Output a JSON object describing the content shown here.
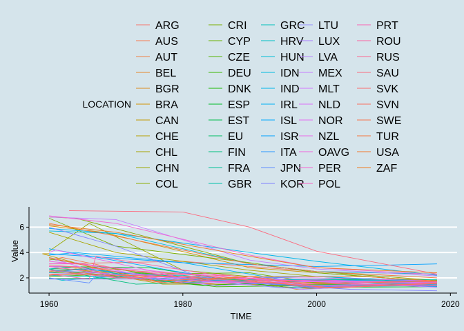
{
  "chart_data": {
    "type": "line",
    "xlabel": "TIME",
    "ylabel": "Value",
    "xlim": [
      1957,
      2021
    ],
    "ylim": [
      0.8,
      7.6
    ],
    "xticks": [
      1960,
      1980,
      2000,
      2020
    ],
    "yticks": [
      2,
      4,
      6
    ],
    "grid": true,
    "legend": {
      "title": "LOCATION",
      "placement": "top",
      "columns": 5,
      "entries": [
        {
          "name": "ARG",
          "color": "#F8766D"
        },
        {
          "name": "AUS",
          "color": "#F67B50"
        },
        {
          "name": "AUT",
          "color": "#F07F43"
        },
        {
          "name": "BEL",
          "color": "#E6862A"
        },
        {
          "name": "BGR",
          "color": "#DD8D1C"
        },
        {
          "name": "BRA",
          "color": "#D39200"
        },
        {
          "name": "CAN",
          "color": "#C49A00"
        },
        {
          "name": "CHE",
          "color": "#B79F00"
        },
        {
          "name": "CHL",
          "color": "#A8A400"
        },
        {
          "name": "CHN",
          "color": "#9AA800"
        },
        {
          "name": "COL",
          "color": "#8AAB00"
        },
        {
          "name": "CRI",
          "color": "#7BAE00"
        },
        {
          "name": "CYP",
          "color": "#6BB100"
        },
        {
          "name": "CZE",
          "color": "#55B400"
        },
        {
          "name": "DEU",
          "color": "#3CB700"
        },
        {
          "name": "DNK",
          "color": "#1BB900"
        },
        {
          "name": "ESP",
          "color": "#00BB27"
        },
        {
          "name": "EST",
          "color": "#00BC48"
        },
        {
          "name": "EU",
          "color": "#00BE63"
        },
        {
          "name": "FIN",
          "color": "#00BF7D"
        },
        {
          "name": "FRA",
          "color": "#00C094"
        },
        {
          "name": "GBR",
          "color": "#00C0A9"
        },
        {
          "name": "GRC",
          "color": "#00C0BB"
        },
        {
          "name": "HRV",
          "color": "#00BFC4"
        },
        {
          "name": "HUN",
          "color": "#00BDD5"
        },
        {
          "name": "IDN",
          "color": "#00BAE0"
        },
        {
          "name": "IND",
          "color": "#00B6EB"
        },
        {
          "name": "IRL",
          "color": "#00B0F6"
        },
        {
          "name": "ISL",
          "color": "#00A9FF"
        },
        {
          "name": "ISR",
          "color": "#00A0FF"
        },
        {
          "name": "ITA",
          "color": "#2C97FF"
        },
        {
          "name": "JPN",
          "color": "#5F8CFF"
        },
        {
          "name": "KOR",
          "color": "#7F80FF"
        },
        {
          "name": "LTU",
          "color": "#9590FF"
        },
        {
          "name": "LUX",
          "color": "#A97EFF"
        },
        {
          "name": "LVA",
          "color": "#B983FF"
        },
        {
          "name": "MEX",
          "color": "#C77CFF"
        },
        {
          "name": "MLT",
          "color": "#D376FF"
        },
        {
          "name": "NLD",
          "color": "#DC71FA"
        },
        {
          "name": "NOR",
          "color": "#E56CF3"
        },
        {
          "name": "NZL",
          "color": "#EB6AE9"
        },
        {
          "name": "OAVG",
          "color": "#F166DE"
        },
        {
          "name": "PER",
          "color": "#F564D1"
        },
        {
          "name": "POL",
          "color": "#F863C3"
        },
        {
          "name": "PRT",
          "color": "#FA63B3"
        },
        {
          "name": "ROU",
          "color": "#FC64A2"
        },
        {
          "name": "RUS",
          "color": "#FD6690"
        },
        {
          "name": "SAU",
          "color": "#FC6A7E"
        },
        {
          "name": "SVK",
          "color": "#FB6D6E"
        },
        {
          "name": "SVN",
          "color": "#F9715C"
        },
        {
          "name": "SWE",
          "color": "#F7744C"
        },
        {
          "name": "TUR",
          "color": "#F5763C"
        },
        {
          "name": "USA",
          "color": "#F3782C"
        },
        {
          "name": "ZAF",
          "color": "#F07A1E"
        }
      ]
    },
    "series": [
      {
        "name": "ARG",
        "x": [
          1960,
          1980,
          2000,
          2018
        ],
        "y": [
          3.1,
          3.3,
          2.5,
          2.3
        ]
      },
      {
        "name": "AUS",
        "x": [
          1960,
          1962,
          1976,
          2000,
          2018
        ],
        "y": [
          3.4,
          3.6,
          2.1,
          1.8,
          1.75
        ]
      },
      {
        "name": "AUT",
        "x": [
          1960,
          1964,
          1977,
          2000,
          2018
        ],
        "y": [
          2.7,
          2.8,
          1.6,
          1.35,
          1.5
        ]
      },
      {
        "name": "BEL",
        "x": [
          1960,
          1964,
          1985,
          2000,
          2018
        ],
        "y": [
          2.5,
          2.7,
          1.5,
          1.65,
          1.6
        ]
      },
      {
        "name": "BGR",
        "x": [
          1960,
          1975,
          1990,
          1997,
          2018
        ],
        "y": [
          2.3,
          2.2,
          1.8,
          1.1,
          1.55
        ]
      },
      {
        "name": "BRA",
        "x": [
          1960,
          1968,
          1990,
          2000,
          2018
        ],
        "y": [
          6.1,
          5.6,
          2.8,
          2.4,
          1.7
        ]
      },
      {
        "name": "CAN",
        "x": [
          1960,
          1959,
          1970,
          1990,
          2018
        ],
        "y": [
          3.9,
          3.9,
          2.3,
          1.8,
          1.5
        ]
      },
      {
        "name": "CHE",
        "x": [
          1960,
          1964,
          1977,
          2000,
          2018
        ],
        "y": [
          2.4,
          2.7,
          1.5,
          1.5,
          1.52
        ]
      },
      {
        "name": "CHL",
        "x": [
          1960,
          1970,
          1990,
          2000,
          2018
        ],
        "y": [
          5.6,
          4.0,
          2.6,
          2.1,
          1.65
        ]
      },
      {
        "name": "CHN",
        "x": [
          1960,
          1966,
          1980,
          2000,
          2018
        ],
        "y": [
          4.1,
          6.3,
          2.6,
          1.6,
          1.7
        ]
      },
      {
        "name": "COL",
        "x": [
          1960,
          1964,
          1990,
          2000,
          2018
        ],
        "y": [
          6.8,
          6.7,
          3.1,
          2.5,
          1.8
        ]
      },
      {
        "name": "CRI",
        "x": [
          1960,
          1970,
          1990,
          2000,
          2018
        ],
        "y": [
          6.7,
          4.5,
          3.2,
          2.4,
          1.7
        ]
      },
      {
        "name": "CYP",
        "x": [
          1960,
          1975,
          1990,
          2000,
          2018
        ],
        "y": [
          3.5,
          2.3,
          2.4,
          1.6,
          1.35
        ]
      },
      {
        "name": "CZE",
        "x": [
          1960,
          1974,
          1995,
          2000,
          2018
        ],
        "y": [
          2.1,
          2.4,
          1.3,
          1.15,
          1.7
        ]
      },
      {
        "name": "DEU",
        "x": [
          1960,
          1966,
          1985,
          2000,
          2018
        ],
        "y": [
          2.4,
          2.5,
          1.3,
          1.4,
          1.55
        ]
      },
      {
        "name": "DNK",
        "x": [
          1960,
          1967,
          1983,
          2000,
          2018
        ],
        "y": [
          2.6,
          2.3,
          1.4,
          1.8,
          1.75
        ]
      },
      {
        "name": "ESP",
        "x": [
          1960,
          1975,
          1995,
          2000,
          2018
        ],
        "y": [
          2.9,
          2.8,
          1.2,
          1.25,
          1.3
        ]
      },
      {
        "name": "EST",
        "x": [
          1960,
          1980,
          1998,
          2000,
          2018
        ],
        "y": [
          1.95,
          2.0,
          1.3,
          1.4,
          1.65
        ]
      },
      {
        "name": "EU",
        "x": [
          1960,
          1965,
          1995,
          2000,
          2018
        ],
        "y": [
          2.6,
          2.7,
          1.45,
          1.45,
          1.55
        ]
      },
      {
        "name": "FIN",
        "x": [
          1960,
          1973,
          1990,
          2010,
          2018
        ],
        "y": [
          2.7,
          1.5,
          1.8,
          1.85,
          1.4
        ]
      },
      {
        "name": "FRA",
        "x": [
          1960,
          1964,
          1976,
          2000,
          2018
        ],
        "y": [
          2.7,
          2.9,
          1.8,
          1.9,
          1.85
        ]
      },
      {
        "name": "GBR",
        "x": [
          1960,
          1964,
          1977,
          2008,
          2018
        ],
        "y": [
          2.7,
          2.9,
          1.7,
          1.95,
          1.7
        ]
      },
      {
        "name": "GRC",
        "x": [
          1960,
          1980,
          1999,
          2008,
          2018
        ],
        "y": [
          2.3,
          2.2,
          1.25,
          1.5,
          1.35
        ]
      },
      {
        "name": "HRV",
        "x": [
          1960,
          1980,
          2000,
          2018
        ],
        "y": [
          2.2,
          1.9,
          1.4,
          1.45
        ]
      },
      {
        "name": "HUN",
        "x": [
          1960,
          1962,
          1975,
          2000,
          2018
        ],
        "y": [
          2.0,
          1.8,
          2.3,
          1.3,
          1.5
        ]
      },
      {
        "name": "IDN",
        "x": [
          1960,
          1970,
          1990,
          2000,
          2018
        ],
        "y": [
          5.7,
          5.5,
          3.1,
          2.5,
          2.3
        ]
      },
      {
        "name": "IND",
        "x": [
          1960,
          1970,
          1990,
          2000,
          2018
        ],
        "y": [
          5.9,
          5.5,
          4.0,
          3.3,
          2.2
        ]
      },
      {
        "name": "IRL",
        "x": [
          1960,
          1964,
          1980,
          1995,
          2018
        ],
        "y": [
          3.8,
          4.0,
          3.2,
          1.85,
          1.75
        ]
      },
      {
        "name": "ISL",
        "x": [
          1960,
          1962,
          1985,
          2000,
          2018
        ],
        "y": [
          4.3,
          4.1,
          1.95,
          2.1,
          1.7
        ]
      },
      {
        "name": "ISR",
        "x": [
          1960,
          1980,
          2000,
          2010,
          2018
        ],
        "y": [
          3.9,
          3.2,
          2.9,
          3.0,
          3.1
        ]
      },
      {
        "name": "ITA",
        "x": [
          1960,
          1965,
          1995,
          2010,
          2018
        ],
        "y": [
          2.4,
          2.7,
          1.2,
          1.45,
          1.3
        ]
      },
      {
        "name": "JPN",
        "x": [
          1960,
          1966,
          1967,
          1975,
          2005,
          2018
        ],
        "y": [
          2.0,
          1.6,
          2.2,
          1.9,
          1.3,
          1.42
        ]
      },
      {
        "name": "KOR",
        "x": [
          1960,
          1970,
          1984,
          2005,
          2018
        ],
        "y": [
          6.0,
          4.5,
          1.8,
          1.1,
          0.98
        ]
      },
      {
        "name": "LTU",
        "x": [
          1960,
          1980,
          2000,
          2018
        ],
        "y": [
          2.6,
          2.0,
          1.4,
          1.6
        ]
      },
      {
        "name": "LUX",
        "x": [
          1960,
          1967,
          1985,
          2000,
          2018
        ],
        "y": [
          2.3,
          2.4,
          1.4,
          1.75,
          1.4
        ]
      },
      {
        "name": "LVA",
        "x": [
          1960,
          1980,
          1998,
          2018
        ],
        "y": [
          1.9,
          1.9,
          1.1,
          1.6
        ]
      },
      {
        "name": "MEX",
        "x": [
          1960,
          1970,
          1990,
          2000,
          2018
        ],
        "y": [
          6.8,
          6.6,
          3.4,
          2.7,
          2.15
        ]
      },
      {
        "name": "MLT",
        "x": [
          1960,
          1970,
          1990,
          2000,
          2018
        ],
        "y": [
          3.6,
          2.0,
          2.0,
          1.7,
          1.25
        ]
      },
      {
        "name": "NLD",
        "x": [
          1960,
          1964,
          1980,
          2000,
          2018
        ],
        "y": [
          3.1,
          3.2,
          1.6,
          1.7,
          1.6
        ]
      },
      {
        "name": "NOR",
        "x": [
          1960,
          1964,
          1983,
          2000,
          2018
        ],
        "y": [
          2.9,
          2.9,
          1.7,
          1.85,
          1.55
        ]
      },
      {
        "name": "NZL",
        "x": [
          1960,
          1961,
          1980,
          2000,
          2018
        ],
        "y": [
          4.0,
          4.2,
          2.0,
          2.0,
          1.75
        ]
      },
      {
        "name": "OAVG",
        "x": [
          1960,
          1970,
          1990,
          2000,
          2018
        ],
        "y": [
          3.3,
          2.8,
          1.9,
          1.75,
          1.65
        ]
      },
      {
        "name": "PER",
        "x": [
          1960,
          1970,
          1990,
          2000,
          2018
        ],
        "y": [
          6.9,
          6.3,
          3.8,
          2.8,
          2.25
        ]
      },
      {
        "name": "POL",
        "x": [
          1960,
          1970,
          1985,
          2000,
          2018
        ],
        "y": [
          2.9,
          2.2,
          2.3,
          1.35,
          1.45
        ]
      },
      {
        "name": "PRT",
        "x": [
          1960,
          1965,
          1985,
          2000,
          2018
        ],
        "y": [
          3.1,
          3.1,
          1.7,
          1.55,
          1.4
        ]
      },
      {
        "name": "ROU",
        "x": [
          1960,
          1966,
          1967,
          1990,
          2018
        ],
        "y": [
          2.3,
          1.9,
          3.7,
          1.8,
          1.7
        ]
      },
      {
        "name": "RUS",
        "x": [
          1960,
          1970,
          1987,
          1999,
          2018
        ],
        "y": [
          2.6,
          2.0,
          2.2,
          1.2,
          1.6
        ]
      },
      {
        "name": "SAU",
        "x": [
          1963,
          1980,
          1990,
          2000,
          2010,
          2018
        ],
        "y": [
          7.3,
          7.2,
          6.0,
          4.1,
          3.1,
          2.3
        ]
      },
      {
        "name": "SVK",
        "x": [
          1960,
          1980,
          2002,
          2018
        ],
        "y": [
          3.0,
          2.3,
          1.2,
          1.55
        ]
      },
      {
        "name": "SVN",
        "x": [
          1960,
          1980,
          2003,
          2018
        ],
        "y": [
          2.3,
          2.1,
          1.2,
          1.6
        ]
      },
      {
        "name": "SWE",
        "x": [
          1960,
          1965,
          1978,
          1990,
          1998,
          2018
        ],
        "y": [
          2.2,
          2.4,
          1.6,
          2.1,
          1.5,
          1.75
        ]
      },
      {
        "name": "TUR",
        "x": [
          1960,
          1970,
          1990,
          2000,
          2018
        ],
        "y": [
          6.3,
          5.3,
          3.1,
          2.5,
          2.0
        ]
      },
      {
        "name": "USA",
        "x": [
          1960,
          1976,
          1990,
          2007,
          2018
        ],
        "y": [
          3.6,
          1.75,
          2.1,
          2.1,
          1.75
        ]
      },
      {
        "name": "ZAF",
        "x": [
          1960,
          1970,
          1990,
          2000,
          2018
        ],
        "y": [
          6.2,
          5.6,
          3.7,
          2.8,
          2.4
        ]
      }
    ]
  }
}
